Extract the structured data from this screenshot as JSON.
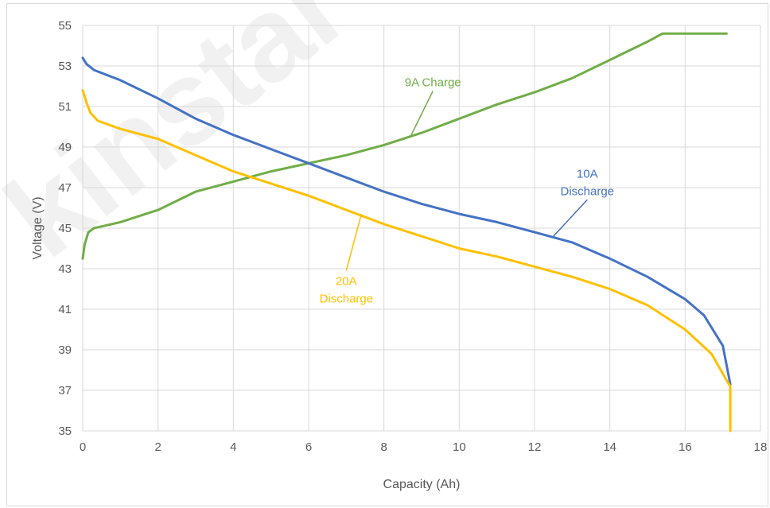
{
  "chart_data": {
    "type": "line",
    "title": "",
    "xlabel": "Capacity (Ah)",
    "ylabel": "Voltage (V)",
    "xlim": [
      0,
      18
    ],
    "ylim": [
      35,
      55
    ],
    "x_ticks": [
      0,
      2,
      4,
      6,
      8,
      10,
      12,
      14,
      16,
      18
    ],
    "y_ticks": [
      35,
      37,
      39,
      41,
      43,
      45,
      47,
      49,
      51,
      53,
      55
    ],
    "grid": true,
    "legend": "none",
    "watermark": "kinstar",
    "series": [
      {
        "name": "9A Charge",
        "color": "#70ad47",
        "points": [
          [
            0,
            43.5
          ],
          [
            0.05,
            44.2
          ],
          [
            0.15,
            44.8
          ],
          [
            0.3,
            45.0
          ],
          [
            1,
            45.3
          ],
          [
            2,
            45.9
          ],
          [
            3,
            46.8
          ],
          [
            4,
            47.3
          ],
          [
            5,
            47.8
          ],
          [
            6,
            48.2
          ],
          [
            7,
            48.6
          ],
          [
            8,
            49.1
          ],
          [
            9,
            49.7
          ],
          [
            10,
            50.4
          ],
          [
            11,
            51.1
          ],
          [
            12,
            51.7
          ],
          [
            13,
            52.4
          ],
          [
            14,
            53.3
          ],
          [
            15,
            54.2
          ],
          [
            15.4,
            54.6
          ],
          [
            17.1,
            54.6
          ]
        ]
      },
      {
        "name": "10A Discharge",
        "color": "#4472c4",
        "points": [
          [
            0,
            53.4
          ],
          [
            0.1,
            53.1
          ],
          [
            0.3,
            52.8
          ],
          [
            1,
            52.3
          ],
          [
            2,
            51.4
          ],
          [
            3,
            50.4
          ],
          [
            4,
            49.6
          ],
          [
            5,
            48.9
          ],
          [
            6,
            48.2
          ],
          [
            7,
            47.5
          ],
          [
            8,
            46.8
          ],
          [
            9,
            46.2
          ],
          [
            10,
            45.7
          ],
          [
            11,
            45.3
          ],
          [
            12,
            44.8
          ],
          [
            13,
            44.3
          ],
          [
            14,
            43.5
          ],
          [
            15,
            42.6
          ],
          [
            16,
            41.5
          ],
          [
            16.5,
            40.7
          ],
          [
            17,
            39.2
          ],
          [
            17.2,
            37.3
          ]
        ]
      },
      {
        "name": "20A Discharge",
        "color": "#ffc000",
        "points": [
          [
            0,
            51.8
          ],
          [
            0.1,
            51.2
          ],
          [
            0.2,
            50.7
          ],
          [
            0.4,
            50.3
          ],
          [
            1,
            49.9
          ],
          [
            2,
            49.4
          ],
          [
            3,
            48.6
          ],
          [
            4,
            47.8
          ],
          [
            5,
            47.2
          ],
          [
            6,
            46.6
          ],
          [
            7,
            45.9
          ],
          [
            8,
            45.2
          ],
          [
            9,
            44.6
          ],
          [
            10,
            44.0
          ],
          [
            11,
            43.6
          ],
          [
            12,
            43.1
          ],
          [
            13,
            42.6
          ],
          [
            14,
            42.0
          ],
          [
            15,
            41.2
          ],
          [
            16,
            40.0
          ],
          [
            16.7,
            38.8
          ],
          [
            17.1,
            37.5
          ],
          [
            17.2,
            37.2
          ],
          [
            17.2,
            35.0
          ]
        ]
      }
    ],
    "annotations": [
      {
        "text_lines": [
          "9A Charge"
        ],
        "series": "9A Charge",
        "label_at": [
          9.3,
          52.0
        ],
        "leader_to": [
          8.7,
          49.5
        ]
      },
      {
        "text_lines": [
          "10A",
          "Discharge"
        ],
        "series": "10A Discharge",
        "label_at": [
          13.4,
          47.5
        ],
        "leader_to": [
          12.5,
          44.6
        ]
      },
      {
        "text_lines": [
          "20A",
          "Discharge"
        ],
        "series": "20A Discharge",
        "label_at": [
          7.0,
          42.2
        ],
        "leader_to": [
          7.4,
          45.7
        ]
      }
    ]
  }
}
